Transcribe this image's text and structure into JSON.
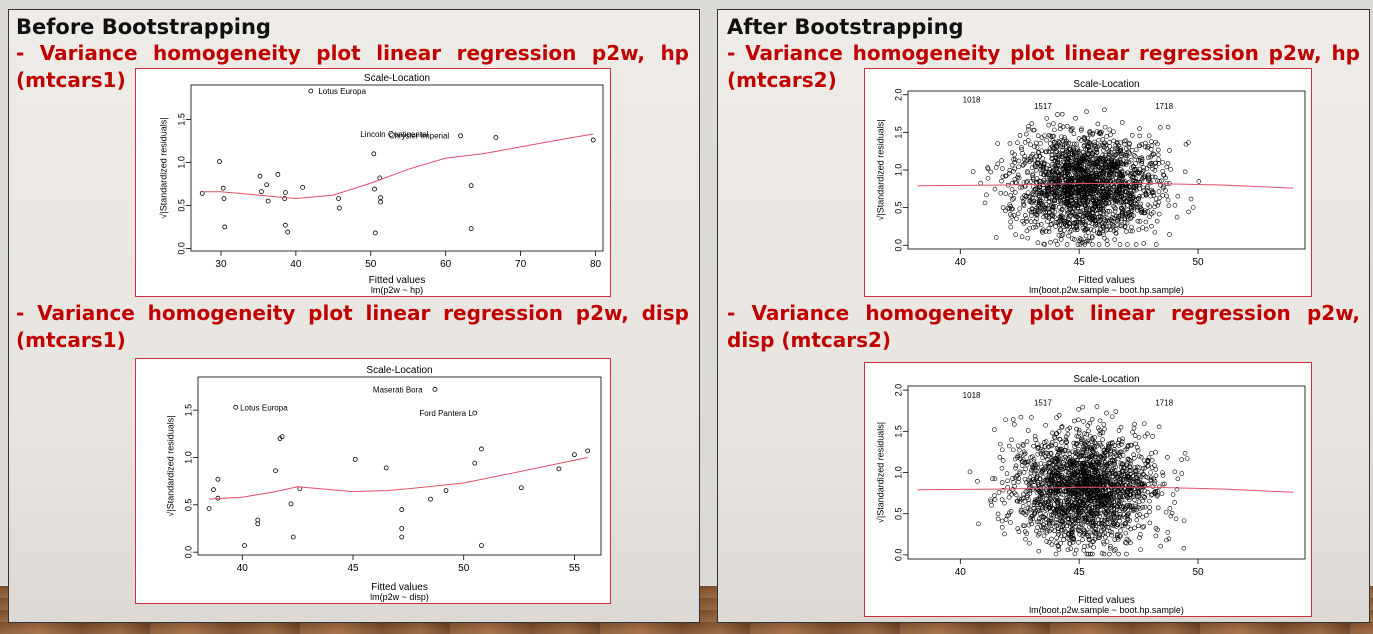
{
  "left": {
    "heading": "Before Bootstrapping",
    "sub1_line1": "- Variance homogeneity plot linear regression p2w, hp",
    "sub1_line2": "(mtcars1)",
    "sub2_line1": "- Variance homogeneity plot linear regression p2w, disp",
    "sub2_line2": "(mtcars1)"
  },
  "right": {
    "heading": "After Bootstrapping",
    "sub1_line1": "- Variance homogeneity plot linear regression p2w, hp",
    "sub1_line2": "(mtcars2)",
    "sub2_line1": "- Variance homogeneity plot linear regression p2w,",
    "sub2_line2": "disp (mtcars2)"
  },
  "chart_data": [
    {
      "type": "scatter",
      "title": "Scale-Location",
      "xlabel": "Fitted values",
      "xlabel2": "lm(p2w ~ hp)",
      "ylabel": "√|Standardized residuals|",
      "xlim": [
        26,
        81
      ],
      "ylim": [
        -0.03,
        1.9
      ],
      "xticks": [
        "30",
        "40",
        "50",
        "60",
        "70",
        "80"
      ],
      "yticks": [
        "0.0",
        "0.5",
        "1.0",
        "1.5"
      ],
      "points": [
        [
          27.5,
          0.64
        ],
        [
          29.8,
          1.01
        ],
        [
          30.3,
          0.7
        ],
        [
          30.4,
          0.58
        ],
        [
          30.5,
          0.25
        ],
        [
          35.2,
          0.84
        ],
        [
          35.4,
          0.66
        ],
        [
          36.1,
          0.74
        ],
        [
          36.3,
          0.55
        ],
        [
          37.6,
          0.86
        ],
        [
          38.5,
          0.58
        ],
        [
          38.6,
          0.65
        ],
        [
          38.6,
          0.27
        ],
        [
          38.9,
          0.19
        ],
        [
          40.9,
          0.71
        ],
        [
          45.7,
          0.58
        ],
        [
          45.8,
          0.47
        ],
        [
          50.4,
          1.1
        ],
        [
          50.5,
          0.69
        ],
        [
          50.6,
          0.18
        ],
        [
          51.2,
          0.82
        ],
        [
          51.3,
          0.59
        ],
        [
          51.3,
          0.54
        ],
        [
          63.4,
          0.73
        ],
        [
          63.4,
          0.23
        ],
        [
          66.7,
          1.29
        ],
        [
          79.7,
          1.26
        ],
        [
          42,
          1.83
        ],
        [
          62,
          1.31
        ]
      ],
      "smooth": [
        [
          27.5,
          0.66
        ],
        [
          30,
          0.66
        ],
        [
          35,
          0.62
        ],
        [
          40,
          0.58
        ],
        [
          45,
          0.62
        ],
        [
          50,
          0.76
        ],
        [
          55,
          0.92
        ],
        [
          60,
          1.05
        ],
        [
          65,
          1.1
        ],
        [
          70,
          1.18
        ],
        [
          75,
          1.26
        ],
        [
          79.7,
          1.33
        ]
      ],
      "labels": [
        {
          "text": "Lotus Europa",
          "x": 43,
          "y": 1.83
        },
        {
          "text": "Lincoln Continental",
          "x": 48.6,
          "y": 1.33
        },
        {
          "text": "Chrysler Imperial",
          "x": 52.4,
          "y": 1.31
        }
      ]
    },
    {
      "type": "scatter",
      "title": "Scale-Location",
      "xlabel": "Fitted values",
      "xlabel2": "lm(p2w ~ disp)",
      "ylabel": "√|Standardized residuals|",
      "xlim": [
        38,
        56.2
      ],
      "ylim": [
        -0.03,
        1.85
      ],
      "xticks": [
        "40",
        "45",
        "50",
        "55"
      ],
      "yticks": [
        "0.0",
        "0.5",
        "1.0",
        "1.5"
      ],
      "points": [
        [
          38.5,
          0.46
        ],
        [
          38.7,
          0.66
        ],
        [
          38.9,
          0.77
        ],
        [
          38.9,
          0.57
        ],
        [
          40.1,
          0.07
        ],
        [
          40.7,
          0.34
        ],
        [
          40.7,
          0.3
        ],
        [
          41.5,
          0.86
        ],
        [
          41.7,
          1.2
        ],
        [
          41.8,
          1.22
        ],
        [
          42.2,
          0.51
        ],
        [
          42.3,
          0.16
        ],
        [
          42.6,
          0.67
        ],
        [
          45.1,
          0.98
        ],
        [
          46.5,
          0.89
        ],
        [
          47.2,
          0.45
        ],
        [
          47.2,
          0.25
        ],
        [
          47.2,
          0.16
        ],
        [
          48.5,
          0.56
        ],
        [
          49.2,
          0.65
        ],
        [
          50.5,
          0.94
        ],
        [
          50.8,
          1.09
        ],
        [
          50.8,
          0.07
        ],
        [
          52.6,
          0.68
        ],
        [
          54.3,
          0.88
        ],
        [
          55,
          1.03
        ],
        [
          55.6,
          1.07
        ],
        [
          39.7,
          1.53
        ],
        [
          48.7,
          1.72
        ],
        [
          50.5,
          1.47
        ]
      ],
      "smooth": [
        [
          38.5,
          0.56
        ],
        [
          40,
          0.58
        ],
        [
          41.5,
          0.64
        ],
        [
          42.5,
          0.69
        ],
        [
          45,
          0.64
        ],
        [
          46.5,
          0.65
        ],
        [
          47.5,
          0.67
        ],
        [
          50,
          0.73
        ],
        [
          52.5,
          0.85
        ],
        [
          55,
          0.97
        ],
        [
          55.6,
          1.0
        ]
      ],
      "labels": [
        {
          "text": "Lotus Europa",
          "x": 39.9,
          "y": 1.53
        },
        {
          "text": "Maserati Bora",
          "x": 45.9,
          "y": 1.72
        },
        {
          "text": "Ford Pantera L",
          "x": 48,
          "y": 1.47
        }
      ]
    },
    {
      "type": "scatter",
      "title": "Scale-Location",
      "xlabel": "Fitted values",
      "xlabel2": "lm(boot.p2w.sample ~ boot.hp.sample)",
      "ylabel": "√|Standardized residuals|",
      "xlim": [
        37.8,
        54.5
      ],
      "ylim": [
        -0.05,
        2.05
      ],
      "xticks": [
        "40",
        "45",
        "50"
      ],
      "yticks": [
        "0.0",
        "0.5",
        "1.0",
        "1.5",
        "2.0"
      ],
      "n_points": 2000,
      "x_center": 45.3,
      "smooth": [
        [
          38.2,
          0.79
        ],
        [
          42,
          0.8
        ],
        [
          45,
          0.82
        ],
        [
          48,
          0.82
        ],
        [
          51,
          0.8
        ],
        [
          54,
          0.76
        ]
      ],
      "labels": [
        {
          "text": "1018",
          "x": 40.1,
          "y": 1.94
        },
        {
          "text": "1517",
          "x": 43.1,
          "y": 1.85
        },
        {
          "text": "1718",
          "x": 48.2,
          "y": 1.85
        }
      ]
    },
    {
      "type": "scatter",
      "title": "Scale-Location",
      "xlabel": "Fitted values",
      "xlabel2": "lm(boot.p2w.sample ~ boot.hp.sample)",
      "ylabel": "√|Standardized residuals|",
      "xlim": [
        37.8,
        54.5
      ],
      "ylim": [
        -0.05,
        2.05
      ],
      "xticks": [
        "40",
        "45",
        "50"
      ],
      "yticks": [
        "0.0",
        "0.5",
        "1.0",
        "1.5",
        "2.0"
      ],
      "n_points": 2000,
      "x_center": 45.3,
      "smooth": [
        [
          38.2,
          0.79
        ],
        [
          42,
          0.8
        ],
        [
          45,
          0.82
        ],
        [
          48,
          0.82
        ],
        [
          51,
          0.8
        ],
        [
          54,
          0.76
        ]
      ],
      "labels": [
        {
          "text": "1018",
          "x": 40.1,
          "y": 1.94
        },
        {
          "text": "1517",
          "x": 43.1,
          "y": 1.85
        },
        {
          "text": "1718",
          "x": 48.2,
          "y": 1.85
        }
      ]
    }
  ]
}
